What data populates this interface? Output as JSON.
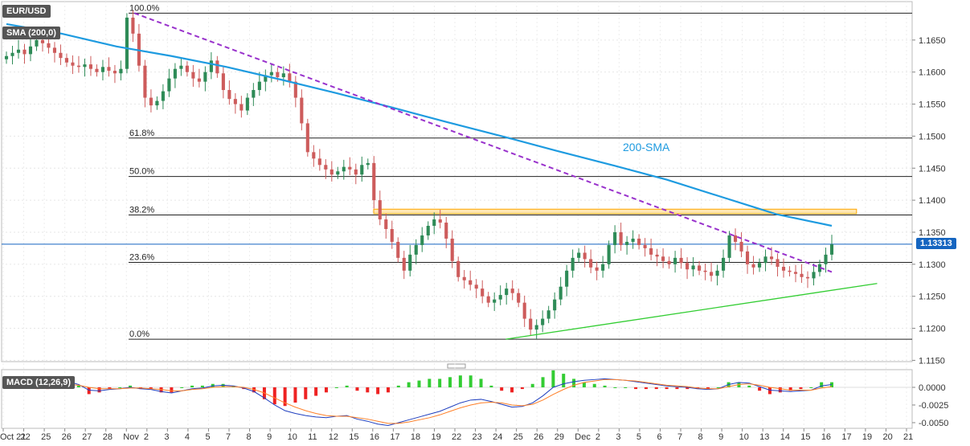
{
  "chart_data": [
    {
      "type": "candlestick",
      "title": "EUR/USD",
      "indicator_label": "SMA (200,0)",
      "sma_label": "200-SMA",
      "current_price": "1.13313",
      "y_ticks": [
        "1.1650",
        "1.1600",
        "1.1550",
        "1.1500",
        "1.1450",
        "1.1400",
        "1.1350",
        "1.1300",
        "1.1250",
        "1.1200",
        "1.1150"
      ],
      "ylim": [
        1.1148,
        1.171
      ],
      "x_labels": [
        "Oct 21",
        "22",
        "25",
        "26",
        "27",
        "28",
        "Nov",
        "2",
        "3",
        "4",
        "5",
        "7",
        "8",
        "9",
        "10",
        "11",
        "12",
        "15",
        "16",
        "17",
        "18",
        "19",
        "22",
        "23",
        "24",
        "25",
        "26",
        "29",
        "Dec",
        "2",
        "3",
        "5",
        "6",
        "7",
        "8",
        "9",
        "10",
        "13",
        "14",
        "15",
        "16",
        "17",
        "19",
        "20",
        "21"
      ],
      "fibonacci": [
        {
          "label": "100.0%",
          "value": 1.1692
        },
        {
          "label": "61.8%",
          "value": 1.1497
        },
        {
          "label": "50.0%",
          "value": 1.1437
        },
        {
          "label": "38.2%",
          "value": 1.1377
        },
        {
          "label": "23.6%",
          "value": 1.1303
        },
        {
          "label": "0.0%",
          "value": 1.1183
        }
      ],
      "resistance_zone": [
        1.1379,
        1.1386
      ],
      "sma_200": [
        1.1675,
        1.166,
        1.164,
        1.1625,
        1.1608,
        1.1588,
        1.1567,
        1.1545,
        1.1522,
        1.15,
        1.1477,
        1.1455,
        1.1432,
        1.1405,
        1.1378,
        1.136
      ],
      "closes": [
        1.1625,
        1.163,
        1.1635,
        1.1628,
        1.164,
        1.165,
        1.1645,
        1.1638,
        1.163,
        1.1622,
        1.1615,
        1.161,
        1.1608,
        1.1612,
        1.1605,
        1.16,
        1.1608,
        1.1602,
        1.1598,
        1.1605,
        1.1685,
        1.166,
        1.161,
        1.156,
        1.1548,
        1.1555,
        1.157,
        1.159,
        1.1605,
        1.161,
        1.16,
        1.159,
        1.1585,
        1.16,
        1.1618,
        1.1598,
        1.1572,
        1.1558,
        1.155,
        1.154,
        1.156,
        1.1572,
        1.1585,
        1.1595,
        1.16,
        1.1592,
        1.1598,
        1.1585,
        1.156,
        1.152,
        1.1475,
        1.1465,
        1.1455,
        1.1448,
        1.144,
        1.1445,
        1.1452,
        1.1448,
        1.144,
        1.1455,
        1.1458,
        1.14,
        1.137,
        1.1355,
        1.1335,
        1.131,
        1.129,
        1.1315,
        1.133,
        1.1345,
        1.136,
        1.137,
        1.1365,
        1.134,
        1.1305,
        1.128,
        1.1275,
        1.1268,
        1.1262,
        1.125,
        1.124,
        1.1245,
        1.1252,
        1.1262,
        1.1255,
        1.124,
        1.1215,
        1.1198,
        1.1205,
        1.1215,
        1.1228,
        1.1245,
        1.1265,
        1.129,
        1.131,
        1.1318,
        1.1308,
        1.1295,
        1.129,
        1.13,
        1.133,
        1.135,
        1.133,
        1.1335,
        1.134,
        1.133,
        1.1325,
        1.1315,
        1.1312,
        1.1305,
        1.13,
        1.131,
        1.1302,
        1.1292,
        1.1298,
        1.129,
        1.1288,
        1.1282,
        1.129,
        1.131,
        1.1345,
        1.1335,
        1.132,
        1.13,
        1.1295,
        1.1302,
        1.1312,
        1.1308,
        1.1296,
        1.129,
        1.1288,
        1.1285,
        1.128,
        1.1278,
        1.1288,
        1.13,
        1.1315,
        1.1331
      ],
      "macd_label": "MACD (12,26,9)",
      "macd_ticks": [
        "0.0000",
        "-0.0025",
        "-0.0050"
      ],
      "macd_ylim": [
        -0.0058,
        0.0025
      ],
      "macd_line": [
        0.0005,
        0.0004,
        0.0003,
        0.0001,
        0.0,
        0.0003,
        0.0008,
        0.0004,
        -0.0004,
        -0.0005,
        -0.0003,
        -0.0002,
        0.0,
        -0.0002,
        -0.0003,
        -0.0006,
        -0.0008,
        -0.0005,
        -0.0002,
        -0.0001,
        0.0002,
        0.0003,
        0.0002,
        -0.0001,
        -0.0006,
        -0.0015,
        -0.0025,
        -0.0033,
        -0.0037,
        -0.004,
        -0.0042,
        -0.0043,
        -0.0041,
        -0.004,
        -0.0045,
        -0.0048,
        -0.0052,
        -0.0054,
        -0.005,
        -0.0046,
        -0.0042,
        -0.0038,
        -0.0034,
        -0.0028,
        -0.0022,
        -0.0018,
        -0.0017,
        -0.002,
        -0.0024,
        -0.0028,
        -0.0027,
        -0.0022,
        -0.0012,
        0.0,
        0.0005,
        0.0008,
        0.001,
        0.0011,
        0.0012,
        0.0011,
        0.001,
        0.0008,
        0.0006,
        0.0004,
        0.0002,
        0.0001,
        0.0,
        -0.0002,
        -0.0003,
        -0.0002,
        0.0004,
        0.0007,
        0.0006,
        0.0001,
        -0.0004,
        -0.0005,
        -0.0006,
        -0.0005,
        -0.0004,
        0.0002,
        0.0004
      ],
      "signal_line": [
        0.0003,
        0.0003,
        0.0003,
        0.0002,
        0.0001,
        0.0002,
        0.0004,
        0.0003,
        0.0,
        -0.0002,
        -0.0002,
        -0.0002,
        -0.0001,
        -0.0001,
        -0.0002,
        -0.0003,
        -0.0005,
        -0.0005,
        -0.0003,
        -0.0002,
        0.0,
        0.0001,
        0.0001,
        0.0,
        -0.0003,
        -0.0008,
        -0.0015,
        -0.0022,
        -0.0028,
        -0.0033,
        -0.0037,
        -0.004,
        -0.0041,
        -0.0041,
        -0.0043,
        -0.0045,
        -0.0048,
        -0.0051,
        -0.0051,
        -0.0049,
        -0.0046,
        -0.0043,
        -0.0039,
        -0.0034,
        -0.0029,
        -0.0025,
        -0.0022,
        -0.0021,
        -0.0022,
        -0.0025,
        -0.0026,
        -0.0024,
        -0.0018,
        -0.001,
        -0.0003,
        0.0003,
        0.0007,
        0.0009,
        0.0011,
        0.0011,
        0.001,
        0.0009,
        0.0007,
        0.0005,
        0.0003,
        0.0002,
        0.0001,
        -0.0001,
        -0.0002,
        -0.0002,
        0.0001,
        0.0004,
        0.0005,
        0.0003,
        0.0,
        -0.0002,
        -0.0004,
        -0.0004,
        -0.0004,
        -0.0001,
        0.0001
      ]
    }
  ],
  "colors": {
    "bull": "#2e8b57",
    "bear": "#cd5c5c",
    "sma": "#1e9be0",
    "trend": "#9932cc",
    "support": "#32cd32",
    "zone": "#ffa500",
    "macd": "#1f3fbf",
    "signal": "#ff7f27",
    "hist_pos": "#33cc33",
    "hist_neg": "#ee2222",
    "price_tag": "#1565c0"
  }
}
